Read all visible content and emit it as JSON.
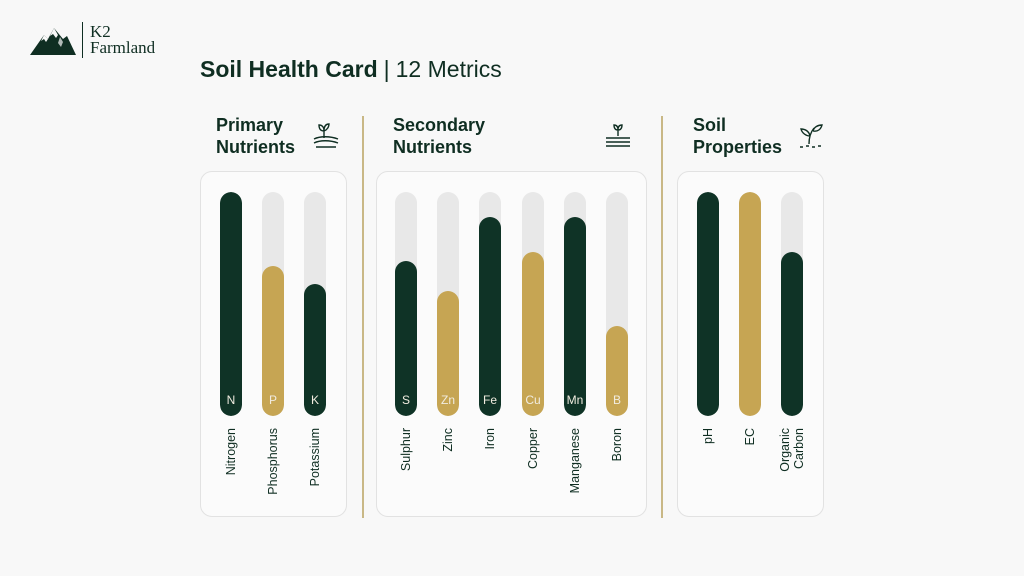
{
  "brand": {
    "line1": "K2",
    "line2": "Farmland"
  },
  "title": {
    "bold": "Soil Health Card",
    "separator": "|",
    "rest": "12 Metrics"
  },
  "chart_data": {
    "type": "bar",
    "orientation": "vertical",
    "ylim": [
      0,
      100
    ],
    "groups": [
      {
        "title_line1": "Primary",
        "title_line2": "Nutrients",
        "icon": "soil-sprout-icon",
        "bars": [
          {
            "symbol": "N",
            "name": "Nitrogen",
            "value": 100,
            "color": "#0f3326"
          },
          {
            "symbol": "P",
            "name": "Phosphorus",
            "value": 67,
            "color": "#c6a553"
          },
          {
            "symbol": "K",
            "name": "Potassium",
            "value": 59,
            "color": "#0f3326"
          }
        ]
      },
      {
        "title_line1": "Secondary",
        "title_line2": "Nutrients",
        "icon": "seedling-rows-icon",
        "bars": [
          {
            "symbol": "S",
            "name": "Sulphur",
            "value": 69,
            "color": "#0f3326"
          },
          {
            "symbol": "Zn",
            "name": "Zinc",
            "value": 56,
            "color": "#c6a553"
          },
          {
            "symbol": "Fe",
            "name": "Iron",
            "value": 89,
            "color": "#0f3326"
          },
          {
            "symbol": "Cu",
            "name": "Copper",
            "value": 73,
            "color": "#c6a553"
          },
          {
            "symbol": "Mn",
            "name": "Manganese",
            "value": 89,
            "color": "#0f3326"
          },
          {
            "symbol": "B",
            "name": "Boron",
            "value": 40,
            "color": "#c6a553"
          }
        ]
      },
      {
        "title_line1": "Soil",
        "title_line2": "Properties",
        "icon": "leafy-sprout-icon",
        "bars": [
          {
            "symbol": "",
            "name": "pH",
            "value": 100,
            "color": "#0f3326"
          },
          {
            "symbol": "",
            "name": "EC",
            "value": 100,
            "color": "#c6a553"
          },
          {
            "symbol": "",
            "name": "Organic Carbon",
            "name_line1": "Organic",
            "name_line2": "Carbon",
            "value": 73,
            "color": "#0f3326"
          }
        ]
      }
    ]
  }
}
